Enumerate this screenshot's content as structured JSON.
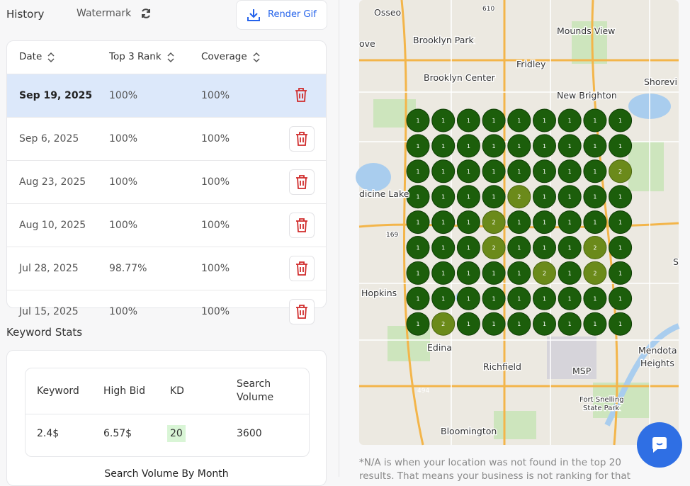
{
  "header": {
    "title": "History",
    "watermark": "Watermark",
    "render_button": "Render Gif"
  },
  "history_table": {
    "columns": [
      "Date",
      "Top 3 Rank",
      "Coverage"
    ],
    "rows": [
      [
        "Sep 19, 2025",
        "100%",
        "100%"
      ],
      [
        "Sep 6, 2025",
        "100%",
        "100%"
      ],
      [
        "Aug 23, 2025",
        "100%",
        "100%"
      ],
      [
        "Aug 10, 2025",
        "100%",
        "100%"
      ],
      [
        "Jul 28, 2025",
        "98.77%",
        "100%"
      ],
      [
        "Jul 15, 2025",
        "100%",
        "100%"
      ]
    ]
  },
  "keyword_stats": {
    "title": "Keyword Stats",
    "columns": [
      "Keyword",
      "High Bid",
      "KD",
      "Search Volume"
    ],
    "row": [
      "2.4$",
      "6.57$",
      "20",
      "3600"
    ],
    "chart_title": "Search Volume By Month"
  },
  "map": {
    "grid": [
      [
        1,
        1,
        1,
        1,
        1,
        1,
        1,
        1,
        1
      ],
      [
        1,
        1,
        1,
        1,
        1,
        1,
        1,
        1,
        1
      ],
      [
        1,
        1,
        1,
        1,
        1,
        1,
        1,
        1,
        2
      ],
      [
        1,
        1,
        1,
        1,
        2,
        1,
        1,
        1,
        1
      ],
      [
        1,
        1,
        1,
        2,
        1,
        1,
        1,
        1,
        1
      ],
      [
        1,
        1,
        1,
        2,
        1,
        1,
        1,
        2,
        1
      ],
      [
        1,
        1,
        1,
        1,
        1,
        2,
        1,
        2,
        1
      ],
      [
        1,
        1,
        1,
        1,
        1,
        1,
        1,
        1,
        1
      ],
      [
        1,
        2,
        1,
        1,
        1,
        1,
        1,
        1,
        1
      ]
    ],
    "labels": [
      "Osseo",
      "610",
      "Mounds View",
      "Brooklyn Park",
      "ove",
      "Fridley",
      "Brooklyn Center",
      "Shorevi",
      "New Brighton",
      "dicine Lake",
      "169",
      "S",
      "Hopkins",
      "Edina",
      "Mendota",
      "Heights",
      "Richfield",
      "MSP",
      "494",
      "Fort Snelling",
      "State Park",
      "Bloomington"
    ]
  },
  "footnote": "*N/A is when your location was not found in the top 20 results. That means your business is not ranking for that"
}
